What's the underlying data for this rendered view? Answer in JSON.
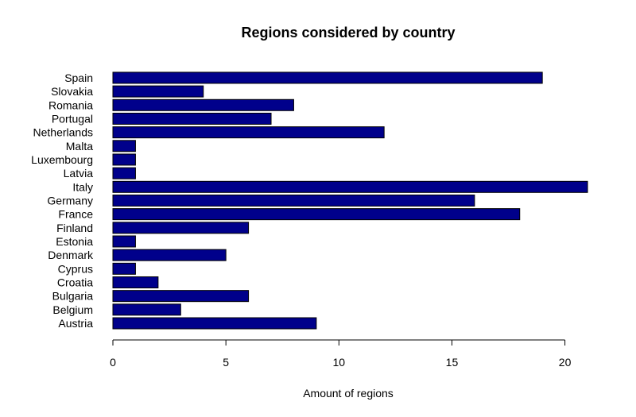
{
  "chart_data": {
    "type": "bar",
    "orientation": "horizontal",
    "title": "Regions considered by country",
    "xlabel": "Amount of regions",
    "ylabel": "",
    "categories": [
      "Austria",
      "Belgium",
      "Bulgaria",
      "Croatia",
      "Cyprus",
      "Denmark",
      "Estonia",
      "Finland",
      "France",
      "Germany",
      "Italy",
      "Latvia",
      "Luxembourg",
      "Malta",
      "Netherlands",
      "Portugal",
      "Romania",
      "Slovakia",
      "Spain"
    ],
    "values": [
      9,
      3,
      6,
      2,
      1,
      5,
      1,
      6,
      18,
      16,
      21,
      1,
      1,
      1,
      12,
      7,
      8,
      4,
      19
    ],
    "xlim": [
      0,
      21
    ],
    "xticks": [
      0,
      5,
      10,
      15,
      20
    ],
    "grid": false,
    "bar_color": "#00008b",
    "bar_border_color": "#000000"
  }
}
